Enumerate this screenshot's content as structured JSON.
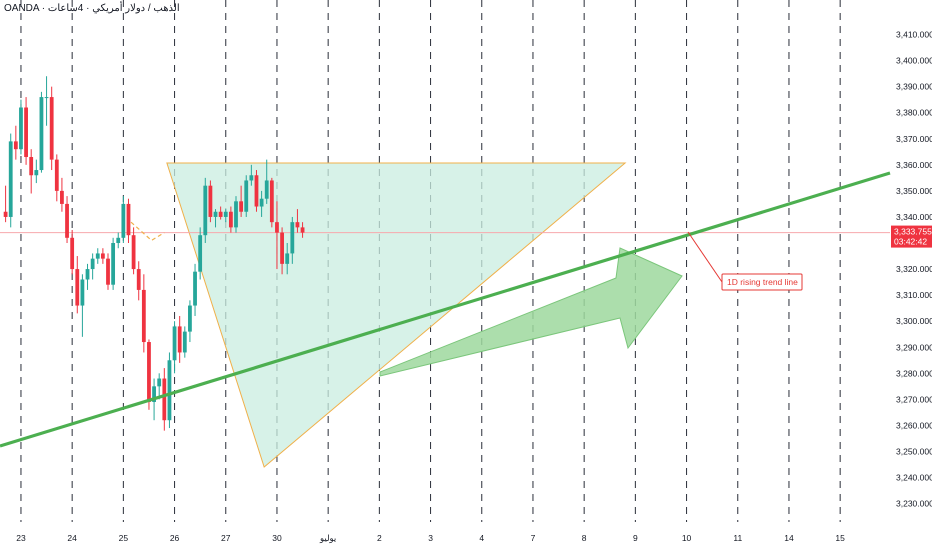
{
  "header": {
    "symbol": "OANDA · الذهب / دولار أمريكي · 4ساعات"
  },
  "colors": {
    "up": "#26a69a",
    "down": "#ef3340",
    "trend": "#4caf50",
    "triangle_stroke": "#f0b04a",
    "triangle_fill": "#c9eee0",
    "arrow_fill": "#9ed89e",
    "price_line": "#f7a8ad",
    "callout": "#e53935"
  },
  "chart_data": {
    "type": "candlestick",
    "ylim": [
      3230,
      3415
    ],
    "y_ticks": [
      "3,410.000",
      "3,400.000",
      "3,390.000",
      "3,380.000",
      "3,370.000",
      "3,360.000",
      "3,350.000",
      "3,340.000",
      "3,330.000",
      "3,320.000",
      "3,310.000",
      "3,300.000",
      "3,290.000",
      "3,280.000",
      "3,270.000",
      "3,260.000",
      "3,250.000",
      "3,240.000",
      "3,230.000"
    ],
    "x_ticks": [
      {
        "label": "23",
        "idx": 3
      },
      {
        "label": "24",
        "idx": 13
      },
      {
        "label": "25",
        "idx": 23
      },
      {
        "label": "26",
        "idx": 33
      },
      {
        "label": "27",
        "idx": 43
      },
      {
        "label": "30",
        "idx": 53
      },
      {
        "label": "يوليو",
        "idx": 63
      },
      {
        "label": "2",
        "idx": 73
      },
      {
        "label": "3",
        "idx": 83
      },
      {
        "label": "4",
        "idx": 93
      },
      {
        "label": "7",
        "idx": 103
      },
      {
        "label": "8",
        "idx": 113
      },
      {
        "label": "9",
        "idx": 123
      },
      {
        "label": "10",
        "idx": 133
      },
      {
        "label": "11",
        "idx": 143
      },
      {
        "label": "14",
        "idx": 153
      },
      {
        "label": "15",
        "idx": 163
      }
    ],
    "candles": [
      [
        3342,
        3352,
        3338,
        3340
      ],
      [
        3340,
        3372,
        3336,
        3369
      ],
      [
        3369,
        3375,
        3362,
        3366
      ],
      [
        3366,
        3385,
        3364,
        3382
      ],
      [
        3382,
        3386,
        3360,
        3363
      ],
      [
        3363,
        3366,
        3349,
        3356
      ],
      [
        3356,
        3362,
        3353,
        3358
      ],
      [
        3358,
        3388,
        3357,
        3386
      ],
      [
        3386,
        3394,
        3375,
        3386
      ],
      [
        3386,
        3390,
        3358,
        3362
      ],
      [
        3362,
        3364,
        3346,
        3350
      ],
      [
        3350,
        3355,
        3342,
        3345
      ],
      [
        3345,
        3348,
        3330,
        3332
      ],
      [
        3332,
        3335,
        3318,
        3320
      ],
      [
        3320,
        3325,
        3303,
        3306
      ],
      [
        3306,
        3318,
        3294,
        3316
      ],
      [
        3316,
        3322,
        3312,
        3320
      ],
      [
        3320,
        3326,
        3316,
        3324
      ],
      [
        3324,
        3328,
        3322,
        3326
      ],
      [
        3326,
        3328,
        3322,
        3324
      ],
      [
        3324,
        3326,
        3312,
        3314
      ],
      [
        3314,
        3332,
        3312,
        3330
      ],
      [
        3330,
        3334,
        3328,
        3332
      ],
      [
        3332,
        3348,
        3330,
        3345
      ],
      [
        3345,
        3347,
        3330,
        3333
      ],
      [
        3333,
        3336,
        3318,
        3320
      ],
      [
        3320,
        3323,
        3308,
        3312
      ],
      [
        3312,
        3318,
        3288,
        3292
      ],
      [
        3292,
        3293,
        3266,
        3269
      ],
      [
        3269,
        3278,
        3262,
        3275
      ],
      [
        3275,
        3280,
        3270,
        3278
      ],
      [
        3278,
        3282,
        3258,
        3262
      ],
      [
        3262,
        3288,
        3259,
        3285
      ],
      [
        3285,
        3300,
        3280,
        3298
      ],
      [
        3298,
        3302,
        3284,
        3288
      ],
      [
        3288,
        3298,
        3286,
        3296
      ],
      [
        3296,
        3308,
        3292,
        3306
      ],
      [
        3306,
        3322,
        3302,
        3319
      ],
      [
        3319,
        3336,
        3316,
        3333
      ],
      [
        3333,
        3355,
        3330,
        3352
      ],
      [
        3352,
        3354,
        3338,
        3340
      ],
      [
        3340,
        3343,
        3336,
        3342
      ],
      [
        3342,
        3344,
        3339,
        3340
      ],
      [
        3340,
        3343,
        3338,
        3342
      ],
      [
        3342,
        3344,
        3334,
        3336
      ],
      [
        3336,
        3348,
        3334,
        3346
      ],
      [
        3346,
        3352,
        3340,
        3342
      ],
      [
        3342,
        3356,
        3340,
        3354
      ],
      [
        3354,
        3360,
        3352,
        3356
      ],
      [
        3356,
        3358,
        3342,
        3344
      ],
      [
        3344,
        3350,
        3340,
        3347
      ],
      [
        3347,
        3362,
        3345,
        3354
      ],
      [
        3354,
        3355,
        3336,
        3338
      ],
      [
        3338,
        3346,
        3320,
        3334
      ],
      [
        3334,
        3336,
        3318,
        3322
      ],
      [
        3322,
        3330,
        3318,
        3326
      ],
      [
        3326,
        3340,
        3322,
        3338
      ],
      [
        3338,
        3343,
        3334,
        3336
      ],
      [
        3336,
        3338,
        3332,
        3334
      ]
    ]
  },
  "annotations": {
    "last_price": "3,333.755",
    "countdown": "03:42:42",
    "trend_label": "1D rising trend line"
  }
}
